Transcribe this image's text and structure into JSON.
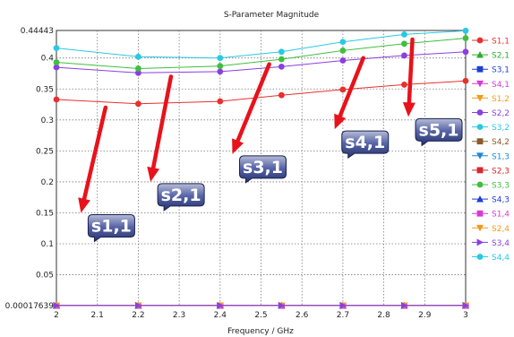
{
  "chart_data": {
    "type": "line",
    "title": "S-Parameter Magnitude",
    "xlabel": "Frequency / GHz",
    "ylabel": "",
    "xlim": [
      2,
      3
    ],
    "ylim": [
      0.00017639,
      0.44443
    ],
    "x_ticks": [
      "2",
      "2.1",
      "2.2",
      "2.3",
      "2.4",
      "2.5",
      "2.6",
      "2.7",
      "2.8",
      "2.9",
      "3"
    ],
    "y_ticks": [
      {
        "value": 0.44443,
        "label": "0.44443"
      },
      {
        "value": 0.4,
        "label": "0.4"
      },
      {
        "value": 0.35,
        "label": "0.35"
      },
      {
        "value": 0.3,
        "label": "0.3"
      },
      {
        "value": 0.25,
        "label": "0.25"
      },
      {
        "value": 0.2,
        "label": "0.2"
      },
      {
        "value": 0.15,
        "label": "0.15"
      },
      {
        "value": 0.1,
        "label": "0.1"
      },
      {
        "value": 0.05,
        "label": "0.05"
      },
      {
        "value": 0.00017639,
        "label": "0.00017639"
      }
    ],
    "grid": true,
    "legend_position": "right",
    "x": [
      2,
      2.2,
      2.4,
      2.55,
      2.7,
      2.85,
      3
    ],
    "series": [
      {
        "name": "S1,1",
        "color": "#e8302e",
        "marker": "circle",
        "values": [
          0.333,
          0.326,
          0.33,
          0.34,
          0.349,
          0.357,
          0.363
        ]
      },
      {
        "name": "S2,1",
        "color": "#2faa2f",
        "marker": "triangle",
        "values": [
          0.00035,
          0.00035,
          0.00035,
          0.00035,
          0.00035,
          0.00035,
          0.00035
        ]
      },
      {
        "name": "S3,1",
        "color": "#1f3fd1",
        "marker": "square",
        "values": [
          0.0003,
          0.0003,
          0.0003,
          0.0003,
          0.0003,
          0.0003,
          0.0003
        ]
      },
      {
        "name": "S4,1",
        "color": "#d63ad6",
        "marker": "triangle-down",
        "values": [
          0.0003,
          0.0003,
          0.0003,
          0.0003,
          0.0003,
          0.0003,
          0.0003
        ]
      },
      {
        "name": "S1,2",
        "color": "#f39a1b",
        "marker": "triangle-down",
        "values": [
          0.0003,
          0.0003,
          0.0003,
          0.0003,
          0.0003,
          0.0003,
          0.0003
        ]
      },
      {
        "name": "S2,2",
        "color": "#8a3fe0",
        "marker": "circle",
        "values": [
          0.385,
          0.376,
          0.378,
          0.386,
          0.396,
          0.404,
          0.41
        ]
      },
      {
        "name": "S3,2",
        "color": "#28c9e3",
        "marker": "circle",
        "values": [
          0.0003,
          0.0003,
          0.0003,
          0.0003,
          0.0003,
          0.0003,
          0.0003
        ]
      },
      {
        "name": "S4,2",
        "color": "#8a5a2b",
        "marker": "square",
        "values": [
          0.0003,
          0.0003,
          0.0003,
          0.0003,
          0.0003,
          0.0003,
          0.0003
        ]
      },
      {
        "name": "S1,3",
        "color": "#1e88d9",
        "marker": "triangle-down",
        "values": [
          0.0003,
          0.0003,
          0.0003,
          0.0003,
          0.0003,
          0.0003,
          0.0003
        ]
      },
      {
        "name": "S2,3",
        "color": "#d9262b",
        "marker": "square",
        "values": [
          0.0003,
          0.0003,
          0.0003,
          0.0003,
          0.0003,
          0.0003,
          0.0003
        ]
      },
      {
        "name": "S3,3",
        "color": "#3fbf3f",
        "marker": "circle",
        "values": [
          0.393,
          0.383,
          0.387,
          0.398,
          0.412,
          0.423,
          0.432
        ]
      },
      {
        "name": "S4,3",
        "color": "#1f3fd1",
        "marker": "triangle",
        "values": [
          0.0003,
          0.0003,
          0.0003,
          0.0003,
          0.0003,
          0.0003,
          0.0003
        ]
      },
      {
        "name": "S1,4",
        "color": "#d63ad6",
        "marker": "square",
        "values": [
          0.0003,
          0.0003,
          0.0003,
          0.0003,
          0.0003,
          0.0003,
          0.0003
        ]
      },
      {
        "name": "S2,4",
        "color": "#f39a1b",
        "marker": "triangle-down",
        "values": [
          0.0003,
          0.0003,
          0.0003,
          0.0003,
          0.0003,
          0.0003,
          0.0003
        ]
      },
      {
        "name": "S3,4",
        "color": "#8a3fe0",
        "marker": "triangle-right",
        "values": [
          0.0003,
          0.0003,
          0.0003,
          0.0003,
          0.0003,
          0.0003,
          0.0003
        ]
      },
      {
        "name": "S4,4",
        "color": "#28c9e3",
        "marker": "circle",
        "values": [
          0.416,
          0.402,
          0.4,
          0.41,
          0.426,
          0.438,
          0.444
        ]
      }
    ],
    "annotations": [
      {
        "label": "s1,1",
        "arrow_from": [
          2.12,
          0.32
        ],
        "arrow_to": [
          2.06,
          0.15
        ]
      },
      {
        "label": "s2,1",
        "arrow_from": [
          2.28,
          0.37
        ],
        "arrow_to": [
          2.23,
          0.2
        ]
      },
      {
        "label": "s3,1",
        "arrow_from": [
          2.52,
          0.39
        ],
        "arrow_to": [
          2.43,
          0.245
        ]
      },
      {
        "label": "s4,1",
        "arrow_from": [
          2.75,
          0.4
        ],
        "arrow_to": [
          2.68,
          0.285
        ]
      },
      {
        "label": "s5,1",
        "arrow_from": [
          2.87,
          0.43
        ],
        "arrow_to": [
          2.86,
          0.305
        ]
      }
    ]
  }
}
